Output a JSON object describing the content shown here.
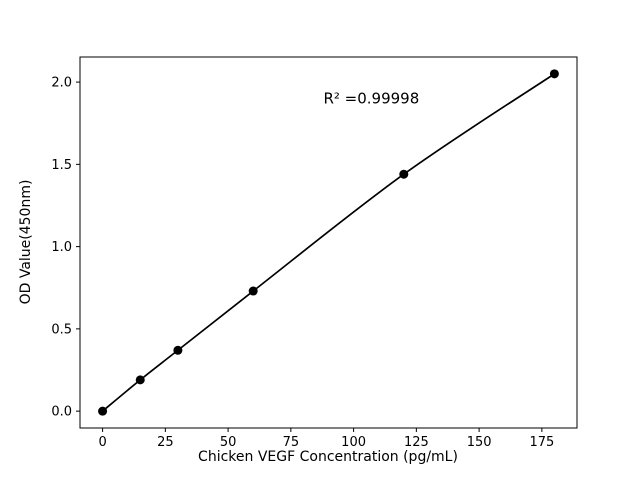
{
  "chart_data": {
    "type": "line",
    "title": "",
    "xlabel": "Chicken VEGF Concentration (pg/mL)",
    "ylabel": "OD Value(450nm)",
    "annotation": "R² =0.99998",
    "x": [
      0,
      15,
      30,
      60,
      120,
      180
    ],
    "y": [
      0.0,
      0.19,
      0.37,
      0.73,
      1.44,
      2.05
    ],
    "xticks": {
      "values": [
        0,
        25,
        50,
        75,
        100,
        125,
        150,
        175
      ],
      "labels": [
        "0",
        "25",
        "50",
        "75",
        "100",
        "125",
        "150",
        "175"
      ]
    },
    "yticks": {
      "values": [
        0.0,
        0.5,
        1.0,
        1.5,
        2.0
      ],
      "labels": [
        "0.0",
        "0.5",
        "1.0",
        "1.5",
        "2.0"
      ]
    },
    "xlim": [
      -9,
      189
    ],
    "ylim": [
      -0.1025,
      2.1525
    ],
    "grid": false,
    "legend": "none",
    "line_color": "#000000",
    "marker_color": "#000000",
    "spine_color": "#000000",
    "annotation_xy": [
      88,
      1.87
    ]
  }
}
